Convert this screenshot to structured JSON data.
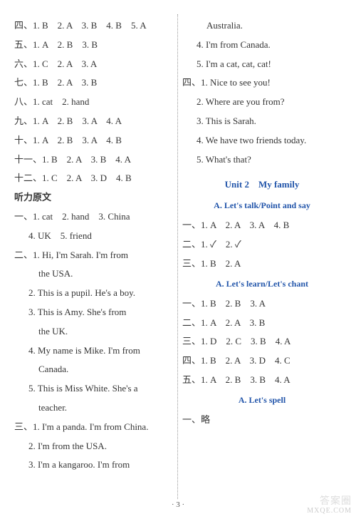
{
  "left": {
    "answers": [
      "四、1. B　2. A　3. B　4. B　5. A",
      "五、1. A　2. B　3. B",
      "六、1. C　2. A　3. A",
      "七、1. B　2. A　3. B",
      "八、1. cat　2. hand",
      "九、1. A　2. B　3. A　4. A",
      "十、1. A　2. B　3. A　4. B",
      "十一、1. B　2. A　3. B　4. A",
      "十二、1. C　2. A　3. D　4. B"
    ],
    "listen_heading": "听力原文",
    "listen1a": "一、1. cat　2. hand　3. China",
    "listen1b": "4. UK　5. friend",
    "listen2_1a": "二、1. Hi,  I'm  Sarah.  I'm  from",
    "listen2_1b": "the USA.",
    "listen2_2": "2. This is a pupil.  He's a boy.",
    "listen2_3a": "3. This  is  Amy.  She's  from",
    "listen2_3b": "the UK.",
    "listen2_4a": "4. My name is Mike.  I'm from",
    "listen2_4b": "Canada.",
    "listen2_5a": "5. This  is  Miss  White.  She's  a",
    "listen2_5b": "teacher.",
    "listen3_1": "三、1. I'm a panda.  I'm from China.",
    "listen3_2": "2. I'm from the USA.",
    "listen3_3": "3. I'm  a  kangaroo.  I'm  from"
  },
  "right": {
    "cont1": "Australia.",
    "cont2": "4. I'm from Canada.",
    "cont3": "5. I'm a cat, cat, cat!",
    "sec4_1": "四、1. Nice to see you!",
    "sec4_2": "2. Where are you from?",
    "sec4_3": "3. This is Sarah.",
    "sec4_4": "4. We have two friends today.",
    "sec4_5": "5. What's that?",
    "unit_title": "Unit 2　My family",
    "secA1_title": "A. Let's talk/Point and say",
    "a1_1": "一、1. A　2. A　3. A　4. B",
    "a1_2": "二、1. ✓　2. ✓",
    "a1_3": "三、1. B　2. A",
    "secA2_title": "A. Let's learn/Let's chant",
    "a2_1": "一、1. B　2. B　3. A",
    "a2_2": "二、1. A　2. A　3. B",
    "a2_3": "三、1. D　2. C　3. B　4. A",
    "a2_4": "四、1. B　2. A　3. D　4. C",
    "a2_5": "五、1. A　2. B　3. B　4. A",
    "secA3_title": "A. Let's spell",
    "a3_1": "一、略"
  },
  "pagenum": "· 3 ·",
  "watermark_top": "答案圈",
  "watermark_bottom": "MXQE.COM"
}
